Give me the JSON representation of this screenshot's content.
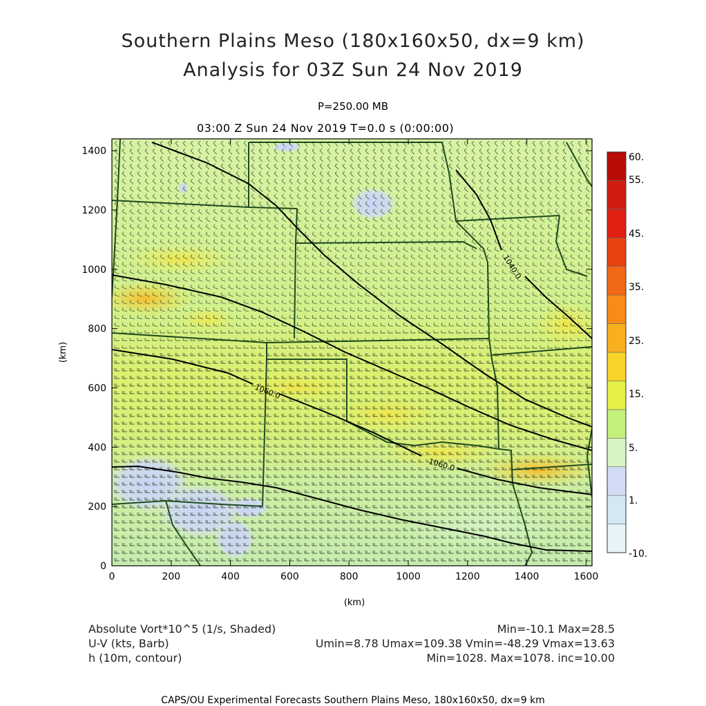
{
  "header": {
    "title_line1": "Southern Plains Meso (180x160x50, dx=9 km)",
    "title_line2": "Analysis for 03Z Sun 24 Nov 2019",
    "level": "P=250.00 MB",
    "valid_time": "03:00 Z Sun 24 Nov 2019    T=0.0 s (0:00:00)"
  },
  "chart_data": {
    "type": "heatmap",
    "xlabel": "(km)",
    "ylabel": "(km)",
    "xlim": [
      0,
      1620
    ],
    "ylim": [
      0,
      1440
    ],
    "x_ticks": [
      "0",
      "200",
      "400",
      "600",
      "800",
      "1000",
      "1200",
      "1400",
      "1600"
    ],
    "y_ticks": [
      "0",
      "200",
      "400",
      "600",
      "800",
      "1000",
      "1200",
      "1400"
    ],
    "colorbar": {
      "labels": [
        "-10.",
        "1.",
        "5.",
        "15.",
        "25.",
        "35.",
        "45.",
        "55.",
        "60."
      ],
      "colors": [
        "#e6f4fa",
        "#d4e8f4",
        "#d2dcf4",
        "#d8f4c4",
        "#c4f07c",
        "#e6f048",
        "#f8d428",
        "#f8b020",
        "#f88c18",
        "#f06818",
        "#e84410",
        "#e02010",
        "#d01c10",
        "#b80c08"
      ]
    },
    "contours": {
      "variable": "h (10m)",
      "labels": [
        "1060.0",
        "1060.0",
        "1040.0"
      ],
      "levels": [
        1030,
        1040,
        1050,
        1060,
        1070
      ]
    },
    "colors": {
      "background_field": "#d6f2a4",
      "boundaries": "#1e4a1e",
      "contours": "#000000"
    }
  },
  "legend": {
    "field1_name": "Absolute Vort*10^5 (1/s, Shaded)",
    "field1_stats": "Min=-10.1 Max=28.5",
    "field2_name": "U-V (kts, Barb)",
    "field2_stats": "Umin=8.78 Umax=109.38 Vmin=-48.29 Vmax=13.63",
    "field3_name": "h (10m, contour)",
    "field3_stats": "Min=1028. Max=1078. inc=10.00"
  },
  "footer": "CAPS/OU Experimental Forecasts  Southern Plains Meso, 180x160x50, dx=9 km"
}
